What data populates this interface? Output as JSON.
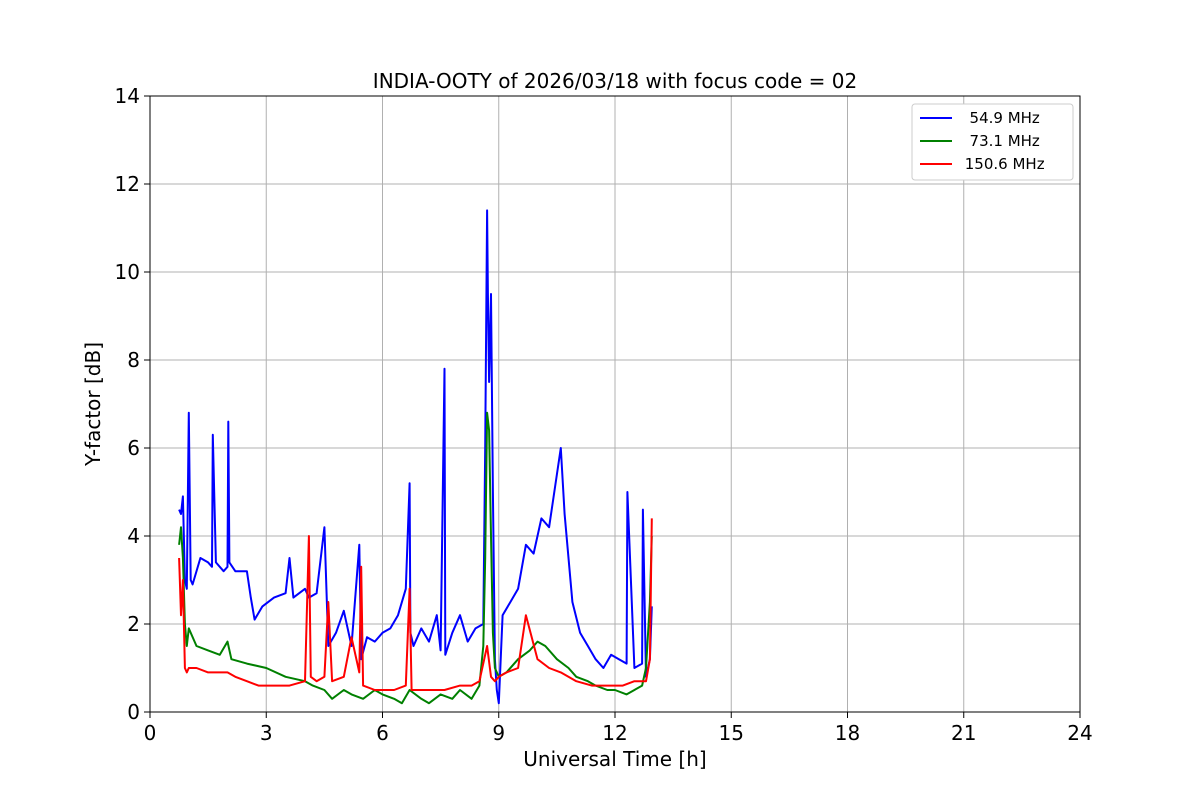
{
  "chart_data": {
    "type": "line",
    "title": "INDIA-OOTY of 2026/03/18 with focus code = 02",
    "xlabel": "Universal Time [h]",
    "ylabel": "Y-factor [dB]",
    "xlim": [
      0,
      24
    ],
    "ylim": [
      0,
      14
    ],
    "xticks": [
      "0",
      "3",
      "6",
      "9",
      "12",
      "15",
      "18",
      "21",
      "24"
    ],
    "yticks": [
      "0",
      "2",
      "4",
      "6",
      "8",
      "10",
      "12",
      "14"
    ],
    "grid": true,
    "legend_position": "top-right",
    "series": [
      {
        "name": "  54.9 MHz",
        "color": "#0000ff",
        "x": [
          0.75,
          0.8,
          0.85,
          0.9,
          0.95,
          1.0,
          1.05,
          1.1,
          1.3,
          1.5,
          1.6,
          1.62,
          1.7,
          1.9,
          2.0,
          2.02,
          2.05,
          2.2,
          2.5,
          2.6,
          2.7,
          2.9,
          3.2,
          3.5,
          3.6,
          3.7,
          4.0,
          4.1,
          4.3,
          4.5,
          4.6,
          4.8,
          5.0,
          5.2,
          5.4,
          5.45,
          5.6,
          5.8,
          6.0,
          6.2,
          6.4,
          6.6,
          6.7,
          6.72,
          6.8,
          7.0,
          7.2,
          7.4,
          7.5,
          7.6,
          7.62,
          7.8,
          8.0,
          8.2,
          8.4,
          8.6,
          8.65,
          8.7,
          8.72,
          8.75,
          8.8,
          8.85,
          8.9,
          8.95,
          9.0,
          9.1,
          9.3,
          9.5,
          9.7,
          9.9,
          10.1,
          10.3,
          10.5,
          10.6,
          10.7,
          10.9,
          11.1,
          11.3,
          11.5,
          11.7,
          11.9,
          12.1,
          12.3,
          12.32,
          12.5,
          12.7,
          12.72,
          12.8,
          12.9,
          12.95
        ],
        "y": [
          4.6,
          4.5,
          4.9,
          3.0,
          2.8,
          6.8,
          3.0,
          2.9,
          3.5,
          3.4,
          3.3,
          6.3,
          3.4,
          3.2,
          3.3,
          6.6,
          3.4,
          3.2,
          3.2,
          2.6,
          2.1,
          2.4,
          2.6,
          2.7,
          3.5,
          2.6,
          2.8,
          2.6,
          2.7,
          4.2,
          1.5,
          1.8,
          2.3,
          1.5,
          3.8,
          1.2,
          1.7,
          1.6,
          1.8,
          1.9,
          2.2,
          2.8,
          5.2,
          1.8,
          1.5,
          1.9,
          1.6,
          2.2,
          1.4,
          7.8,
          1.3,
          1.8,
          2.2,
          1.6,
          1.9,
          2.0,
          6.0,
          11.4,
          9.5,
          7.5,
          9.5,
          5.0,
          1.2,
          0.5,
          0.2,
          2.2,
          2.5,
          2.8,
          3.8,
          3.6,
          4.4,
          4.2,
          5.4,
          6.0,
          4.5,
          2.5,
          1.8,
          1.5,
          1.2,
          1.0,
          1.3,
          1.2,
          1.1,
          5.0,
          1.0,
          1.1,
          4.6,
          0.8,
          1.2,
          2.4
        ]
      },
      {
        "name": "  73.1 MHz",
        "color": "#008000",
        "x": [
          0.75,
          0.8,
          0.85,
          0.9,
          0.95,
          1.0,
          1.2,
          1.5,
          1.8,
          2.0,
          2.1,
          2.5,
          3.0,
          3.5,
          4.0,
          4.2,
          4.5,
          4.7,
          5.0,
          5.2,
          5.5,
          5.8,
          6.0,
          6.3,
          6.5,
          6.7,
          7.0,
          7.2,
          7.5,
          7.8,
          8.0,
          8.3,
          8.5,
          8.6,
          8.65,
          8.7,
          8.75,
          8.8,
          8.85,
          8.9,
          9.0,
          9.2,
          9.5,
          9.8,
          10.0,
          10.2,
          10.5,
          10.8,
          11.0,
          11.3,
          11.5,
          11.8,
          12.0,
          12.3,
          12.5,
          12.7,
          12.8,
          12.9,
          12.95
        ],
        "y": [
          3.8,
          4.2,
          3.5,
          2.0,
          1.5,
          1.9,
          1.5,
          1.4,
          1.3,
          1.6,
          1.2,
          1.1,
          1.0,
          0.8,
          0.7,
          0.6,
          0.5,
          0.3,
          0.5,
          0.4,
          0.3,
          0.5,
          0.4,
          0.3,
          0.2,
          0.5,
          0.3,
          0.2,
          0.4,
          0.3,
          0.5,
          0.3,
          0.6,
          1.5,
          3.5,
          6.8,
          6.4,
          4.0,
          1.8,
          1.0,
          0.8,
          0.9,
          1.2,
          1.4,
          1.6,
          1.5,
          1.2,
          1.0,
          0.8,
          0.7,
          0.6,
          0.5,
          0.5,
          0.4,
          0.5,
          0.6,
          1.0,
          2.5,
          4.0
        ]
      },
      {
        "name": " 150.6 MHz",
        "color": "#ff0000",
        "x": [
          0.75,
          0.8,
          0.85,
          0.9,
          0.95,
          1.0,
          1.2,
          1.5,
          1.8,
          2.0,
          2.2,
          2.5,
          2.8,
          3.0,
          3.3,
          3.6,
          4.0,
          4.1,
          4.15,
          4.3,
          4.5,
          4.6,
          4.7,
          5.0,
          5.2,
          5.4,
          5.45,
          5.5,
          5.8,
          6.0,
          6.3,
          6.6,
          6.7,
          6.75,
          6.8,
          7.0,
          7.3,
          7.6,
          8.0,
          8.3,
          8.5,
          8.7,
          8.8,
          8.9,
          9.0,
          9.2,
          9.5,
          9.7,
          10.0,
          10.3,
          10.6,
          11.0,
          11.4,
          11.8,
          12.2,
          12.5,
          12.8,
          12.9,
          12.95
        ],
        "y": [
          3.5,
          2.2,
          3.0,
          1.0,
          0.9,
          1.0,
          1.0,
          0.9,
          0.9,
          0.9,
          0.8,
          0.7,
          0.6,
          0.6,
          0.6,
          0.6,
          0.7,
          4.0,
          0.8,
          0.7,
          0.8,
          2.5,
          0.7,
          0.8,
          1.7,
          0.9,
          3.3,
          0.6,
          0.5,
          0.5,
          0.5,
          0.6,
          2.8,
          0.5,
          0.5,
          0.5,
          0.5,
          0.5,
          0.6,
          0.6,
          0.7,
          1.5,
          0.8,
          0.7,
          0.8,
          0.9,
          1.0,
          2.2,
          1.2,
          1.0,
          0.9,
          0.7,
          0.6,
          0.6,
          0.6,
          0.7,
          0.7,
          1.2,
          4.4
        ]
      }
    ]
  }
}
